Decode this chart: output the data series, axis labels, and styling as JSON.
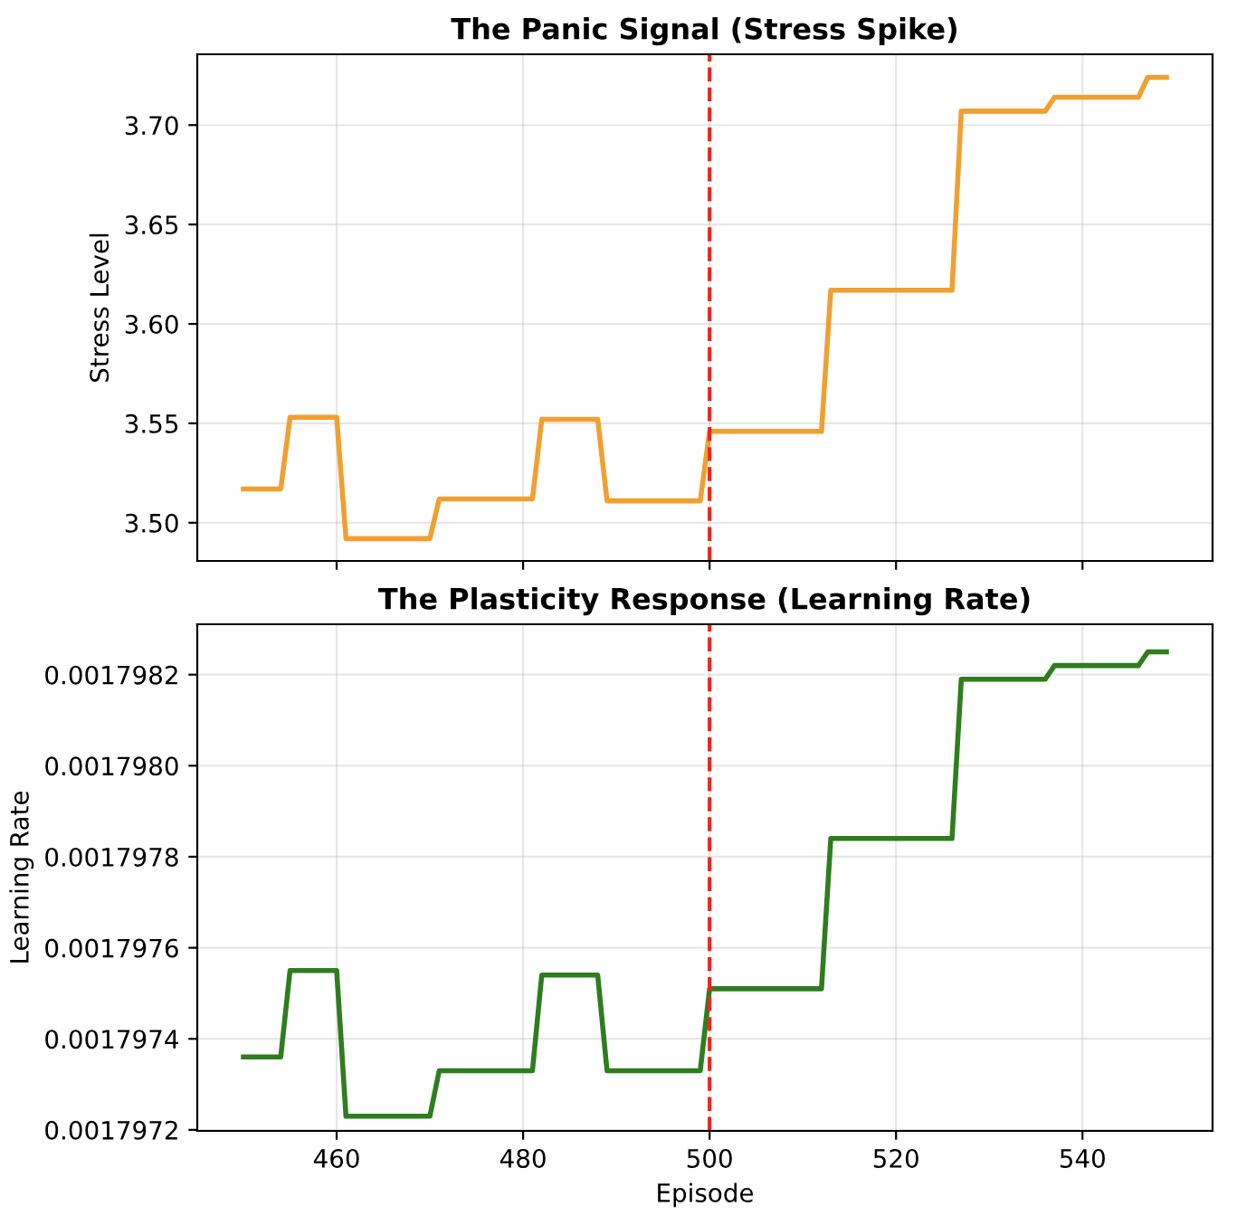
{
  "chart_data": [
    {
      "type": "line",
      "title": "The Panic Signal (Stress Spike)",
      "ylabel": "Stress Level",
      "series": [
        {
          "color": "#f0a030",
          "x": [
            450,
            454,
            455,
            460,
            461,
            470,
            471,
            481,
            482,
            488,
            489,
            499,
            500,
            512,
            513,
            526,
            527,
            536,
            537,
            546,
            547,
            549
          ],
          "values": [
            3.517,
            3.517,
            3.553,
            3.553,
            3.492,
            3.492,
            3.512,
            3.512,
            3.552,
            3.552,
            3.511,
            3.511,
            3.546,
            3.546,
            3.617,
            3.617,
            3.707,
            3.707,
            3.714,
            3.714,
            3.724,
            3.724
          ]
        }
      ],
      "xlim": [
        445.05,
        553.95
      ],
      "xticks": [
        460,
        480,
        500,
        520,
        540
      ],
      "ylim": [
        3.4808,
        3.7356
      ],
      "yticks": [
        {
          "value": 3.5,
          "label": "3.50"
        },
        {
          "value": 3.55,
          "label": "3.55"
        },
        {
          "value": 3.6,
          "label": "3.60"
        },
        {
          "value": 3.65,
          "label": "3.65"
        },
        {
          "value": 3.7,
          "label": "3.70"
        }
      ],
      "ref_lines": [
        {
          "axis": "x",
          "value": 500,
          "color": "#e8281e",
          "line_style": "dashed"
        }
      ],
      "tick_labels": "y",
      "grid": true,
      "marker": "none",
      "line_style": "solid"
    },
    {
      "type": "line",
      "title": "The Plasticity Response (Learning Rate)",
      "xlabel": "Episode",
      "ylabel": "Learning Rate",
      "series": [
        {
          "color": "#2e7d1e",
          "x": [
            450,
            454,
            455,
            460,
            461,
            470,
            471,
            481,
            482,
            488,
            489,
            499,
            500,
            512,
            513,
            526,
            527,
            536,
            537,
            546,
            547,
            549
          ],
          "values": [
            0.00179736,
            0.00179736,
            0.00179755,
            0.00179755,
            0.00179723,
            0.00179723,
            0.00179733,
            0.00179733,
            0.00179754,
            0.00179754,
            0.00179733,
            0.00179733,
            0.00179751,
            0.00179751,
            0.00179784,
            0.00179784,
            0.00179819,
            0.00179819,
            0.00179822,
            0.00179822,
            0.00179825,
            0.00179825
          ]
        }
      ],
      "xlim": [
        445.05,
        553.95
      ],
      "xticks": [
        460,
        480,
        500,
        520,
        540
      ],
      "ylim": [
        0.0017971977,
        0.0017983107
      ],
      "yticks": [
        0.0017972,
        0.0017974,
        0.0017976,
        0.0017978,
        {
          "value": 0.001798,
          "label": "0.0017980"
        },
        0.0017982
      ],
      "ref_lines": [
        {
          "axis": "x",
          "value": 500,
          "color": "#e8281e",
          "line_style": "dashed"
        }
      ],
      "grid": true,
      "marker": "none",
      "line_style": "solid"
    }
  ]
}
